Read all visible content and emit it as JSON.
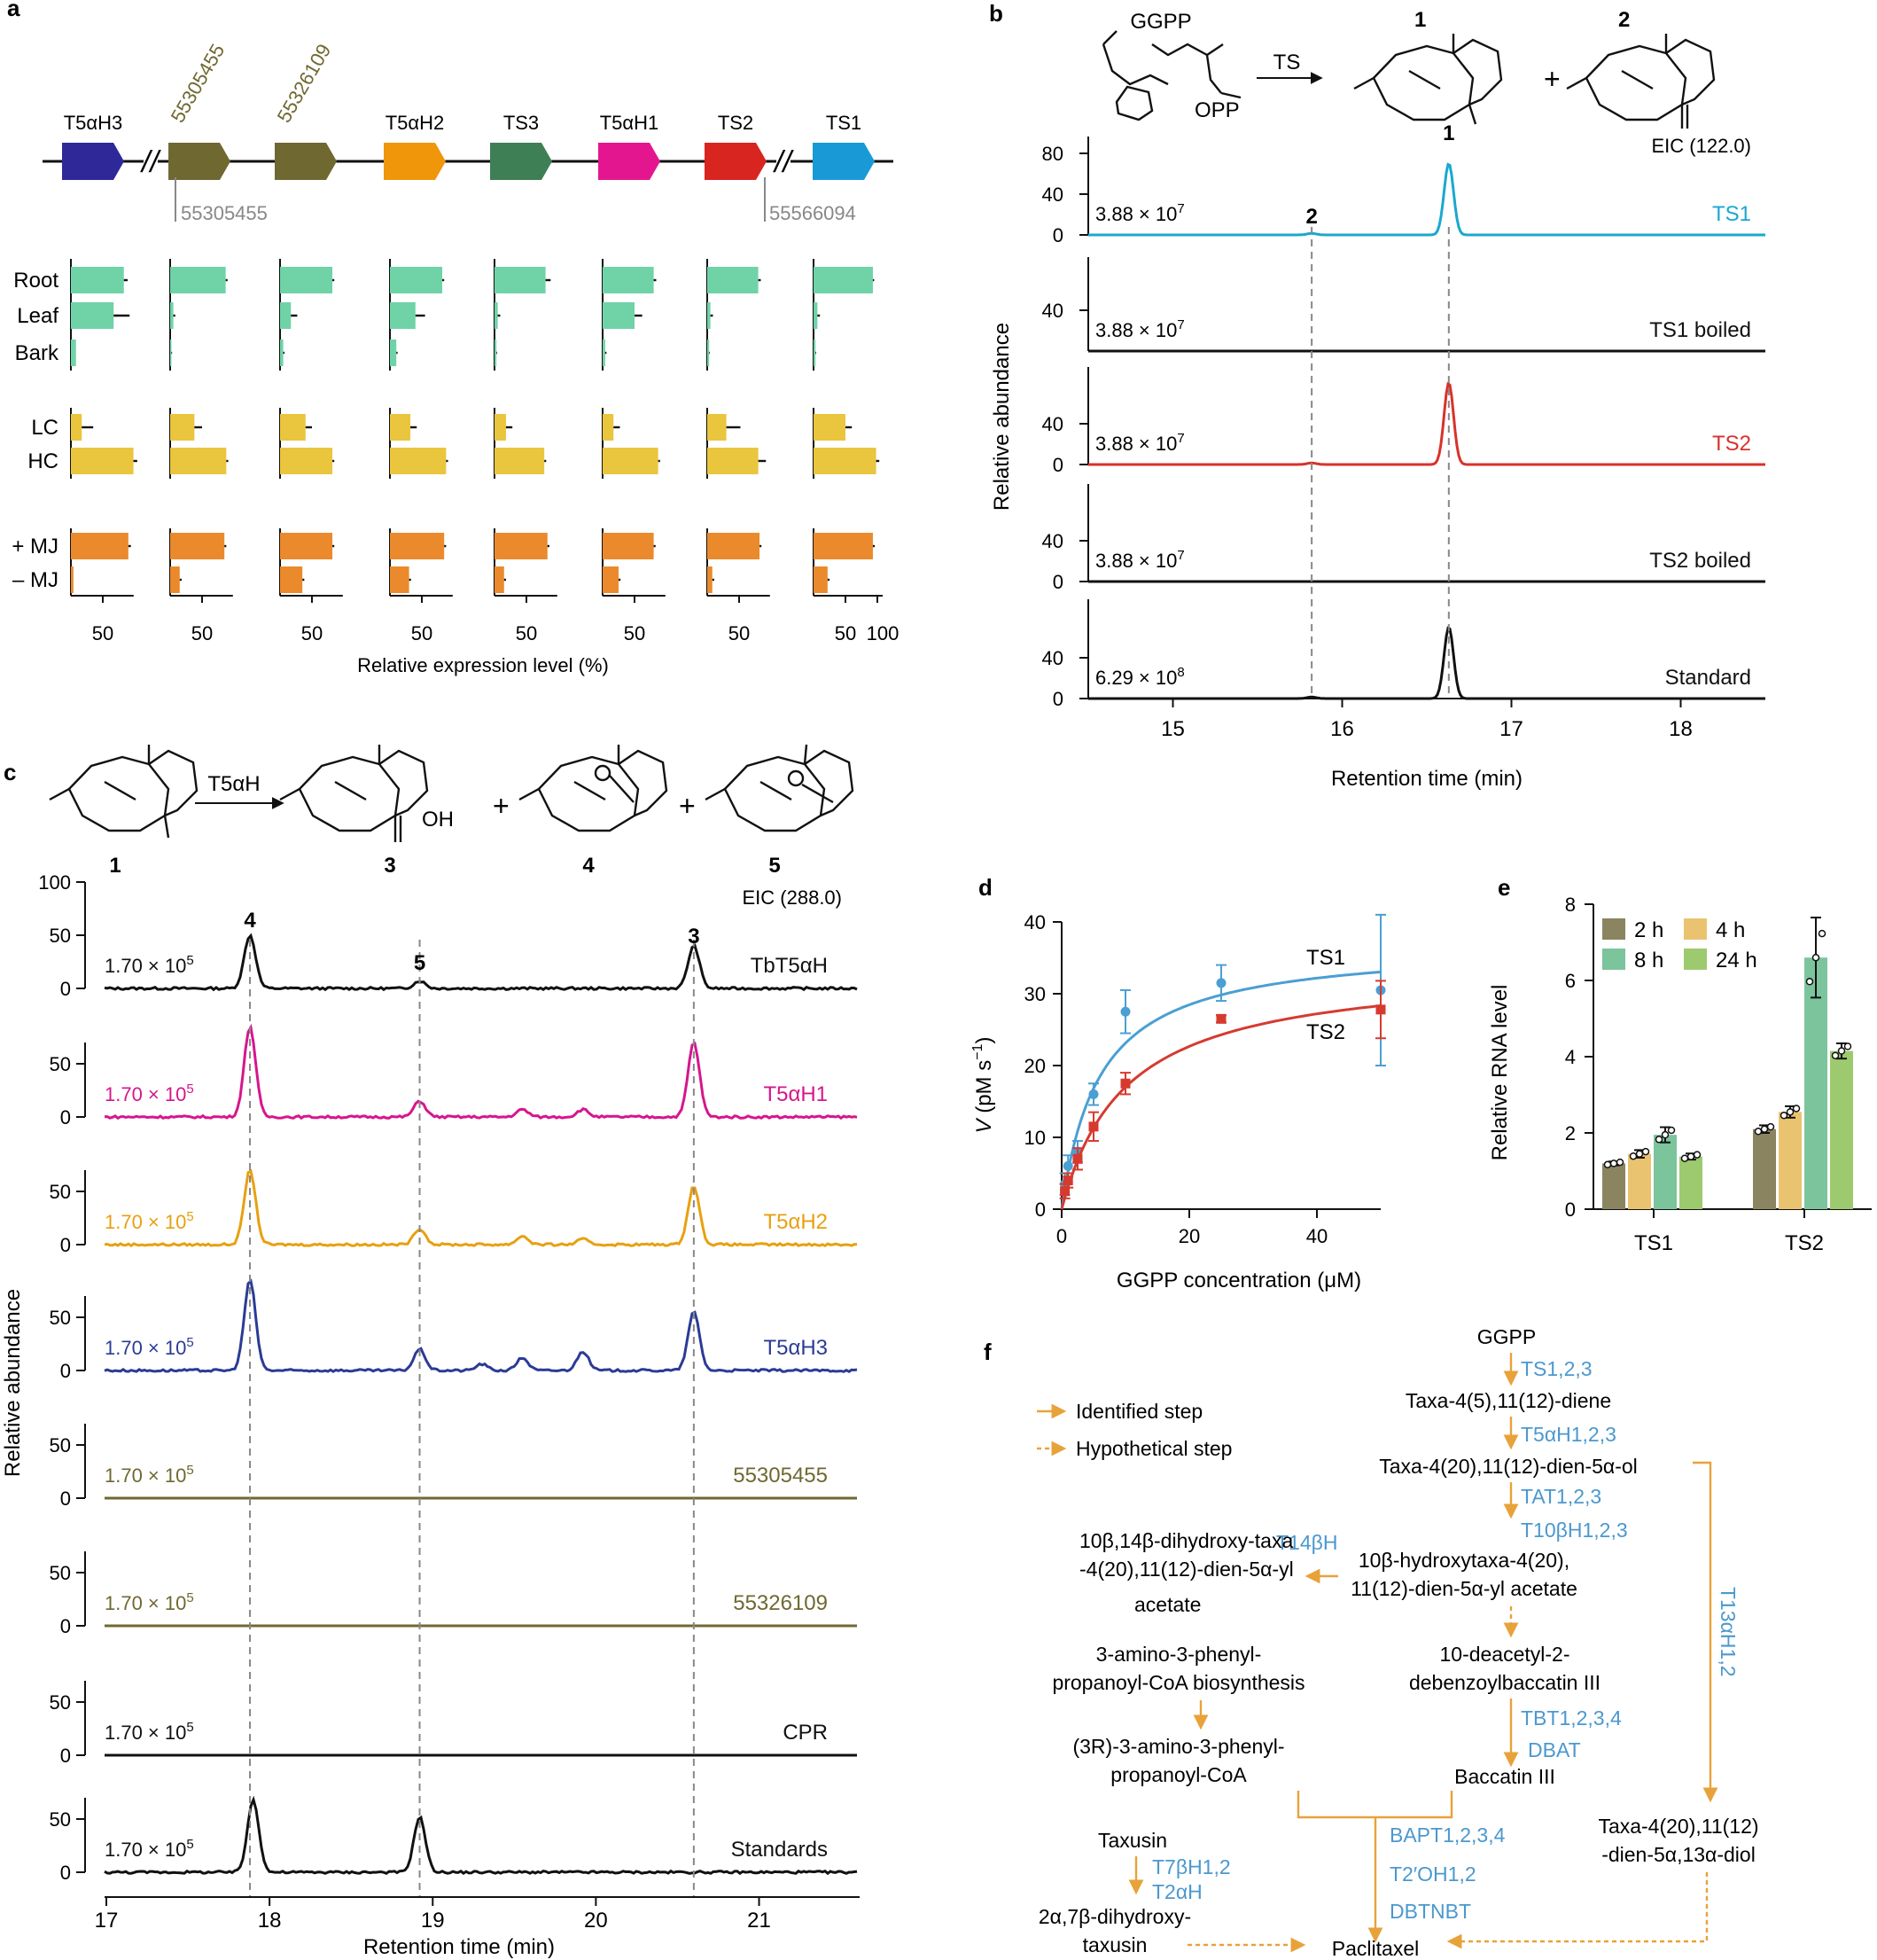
{
  "colors": {
    "root_tissue": "#6fd3a7",
    "cell": "#eac53e",
    "mj": "#ea8a2c",
    "TS1": "#1aa8cf",
    "TS2": "#d8322b",
    "T5aH1": "#d6168d",
    "T5aH2": "#e8a010",
    "T5aH3": "#2b3b95",
    "olive": "#6f6831",
    "arrow": "#e8a23a",
    "enzyme": "#4b98cf",
    "e_2h": "#8a8460",
    "e_4h": "#eac370",
    "e_8h": "#7cc49c",
    "e_24h": "#9dca6e"
  },
  "panel_labels": {
    "a": "a",
    "b": "b",
    "c": "c",
    "d": "d",
    "e": "e",
    "f": "f"
  },
  "panel_a": {
    "genes": [
      "T5αH3",
      "55305455",
      "55326109",
      "T5αH2",
      "TS3",
      "T5αH1",
      "TS2",
      "TS1"
    ],
    "gene_colors": [
      "#2e2899",
      "#6f6831",
      "#6f6831",
      "#f0960a",
      "#3f7f55",
      "#e4168f",
      "#d8251f",
      "#199ad6"
    ],
    "coord_left": "55305455",
    "coord_right": "55566094",
    "row_labels": [
      "Root",
      "Leaf",
      "Bark",
      "LC",
      "HC",
      "+ MJ",
      "– MJ"
    ],
    "values": [
      [
        83,
        67,
        8,
        17,
        98,
        90,
        4
      ],
      [
        87,
        5,
        2,
        38,
        88,
        85,
        15
      ],
      [
        82,
        17,
        5,
        40,
        82,
        82,
        35
      ],
      [
        82,
        40,
        10,
        32,
        88,
        85,
        30
      ],
      [
        80,
        5,
        3,
        18,
        78,
        83,
        15
      ],
      [
        80,
        50,
        4,
        17,
        87,
        80,
        25
      ],
      [
        80,
        5,
        3,
        30,
        80,
        82,
        8
      ],
      [
        93,
        6,
        3,
        50,
        98,
        93,
        22
      ]
    ],
    "errors": [
      [
        6,
        25,
        0,
        18,
        6,
        4,
        0
      ],
      [
        3,
        3,
        1,
        12,
        3,
        3,
        3
      ],
      [
        3,
        10,
        2,
        10,
        3,
        3,
        3
      ],
      [
        3,
        15,
        2,
        10,
        3,
        3,
        3
      ],
      [
        8,
        4,
        1,
        10,
        3,
        3,
        3
      ],
      [
        4,
        12,
        2,
        10,
        3,
        3,
        3
      ],
      [
        4,
        4,
        1,
        22,
        12,
        3,
        3
      ],
      [
        2,
        4,
        1,
        10,
        5,
        3,
        3
      ]
    ],
    "tick_label": "50",
    "tick_label_last": "100",
    "xlabel": "Relative expression level (%)"
  },
  "panel_b": {
    "reaction": {
      "substrate": "GGPP",
      "opp": "OPP",
      "enzyme": "TS",
      "product1": "1",
      "product2": "2",
      "plus": "+"
    },
    "eic": "EIC (122.0)",
    "ylabel": "Relative abundance",
    "xlabel": "Retention time (min)",
    "xticks": [
      "15",
      "16",
      "17",
      "18"
    ],
    "xlim": [
      14.5,
      18.5
    ],
    "peak_labels": [
      "2",
      "1"
    ],
    "dashed_x": [
      15.82,
      16.63
    ],
    "traces": [
      {
        "label": "TS1",
        "scale": "3.88 × 10",
        "exp": "7",
        "color": "#1aa8cf",
        "peaks": [
          [
            15.82,
            1.5
          ],
          [
            16.63,
            70
          ]
        ],
        "yticks": [
          "80",
          "40",
          "0"
        ]
      },
      {
        "label": "TS1 boiled",
        "scale": "3.88 × 10",
        "exp": "7",
        "color": "#111111",
        "peaks": [],
        "yticks": [
          "40"
        ]
      },
      {
        "label": "TS2",
        "scale": "3.88 × 10",
        "exp": "7",
        "color": "#d8322b",
        "peaks": [
          [
            15.82,
            1.5
          ],
          [
            16.63,
            80
          ]
        ],
        "yticks": [
          "40",
          "0"
        ]
      },
      {
        "label": "TS2 boiled",
        "scale": "3.88 × 10",
        "exp": "7",
        "color": "#111111",
        "peaks": [],
        "yticks": [
          "40",
          "0"
        ]
      },
      {
        "label": "Standard",
        "scale": "6.29 × 10",
        "exp": "8",
        "color": "#111111",
        "peaks": [
          [
            15.82,
            1.5
          ],
          [
            16.63,
            70
          ]
        ],
        "yticks": [
          "40",
          "0"
        ]
      }
    ]
  },
  "panel_c": {
    "reaction": {
      "enzyme": "T5αH",
      "oh": "OH",
      "labels": [
        "1",
        "3",
        "4",
        "5"
      ],
      "plus": "+"
    },
    "eic": "EIC (288.0)",
    "ylabel": "Relative abundance",
    "xlabel": "Retention time (min)",
    "xticks": [
      "17",
      "18",
      "19",
      "20",
      "21"
    ],
    "xlim": [
      17,
      21.6
    ],
    "peak_labels": [
      "4",
      "5",
      "3"
    ],
    "dashed_x": [
      17.88,
      18.92,
      20.6
    ],
    "traces": [
      {
        "label": "TbT5αH",
        "scale": "1.70 × 10",
        "exp": "5",
        "color": "#111111",
        "peaks": [
          [
            17.88,
            50
          ],
          [
            18.92,
            7
          ],
          [
            20.6,
            40
          ]
        ],
        "yticks": [
          "100",
          "50",
          "0"
        ]
      },
      {
        "label": "T5αH1",
        "scale": "1.70 × 10",
        "exp": "5",
        "color": "#d6168d",
        "peaks": [
          [
            17.88,
            85
          ],
          [
            18.92,
            15
          ],
          [
            19.55,
            7
          ],
          [
            19.92,
            7
          ],
          [
            20.6,
            70
          ]
        ],
        "yticks": [
          "50",
          "0"
        ]
      },
      {
        "label": "T5αH2",
        "scale": "1.70 × 10",
        "exp": "5",
        "color": "#e8a010",
        "peaks": [
          [
            17.88,
            70
          ],
          [
            18.92,
            15
          ],
          [
            19.55,
            8
          ],
          [
            19.92,
            5
          ],
          [
            20.6,
            55
          ]
        ],
        "yticks": [
          "50",
          "0"
        ]
      },
      {
        "label": "T5αH3",
        "scale": "1.70 × 10",
        "exp": "5",
        "color": "#2b3b95",
        "peaks": [
          [
            17.88,
            85
          ],
          [
            18.92,
            20
          ],
          [
            19.3,
            6
          ],
          [
            19.55,
            12
          ],
          [
            19.92,
            18
          ],
          [
            20.6,
            55
          ]
        ],
        "yticks": [
          "50",
          "0"
        ]
      },
      {
        "label": "55305455",
        "scale": "1.70 × 10",
        "exp": "5",
        "color": "#6f6831",
        "peaks": [],
        "yticks": [
          "50",
          "0"
        ]
      },
      {
        "label": "55326109",
        "scale": "1.70 × 10",
        "exp": "5",
        "color": "#6f6831",
        "peaks": [],
        "yticks": [
          "50",
          "0"
        ]
      },
      {
        "label": "CPR",
        "scale": "1.70 × 10",
        "exp": "5",
        "color": "#111111",
        "peaks": [],
        "yticks": [
          "50",
          "0"
        ]
      },
      {
        "label": "Standards",
        "scale": "1.70 × 10",
        "exp": "5",
        "color": "#111111",
        "peaks": [
          [
            17.9,
            68
          ],
          [
            18.92,
            52
          ]
        ],
        "yticks": [
          "50",
          "0"
        ]
      }
    ]
  },
  "chart_data": [
    {
      "type": "scatter",
      "panel": "d",
      "xlabel": "GGPP concentration (μM)",
      "ylabel_italic": "V",
      "ylabel_rest": " (pM s",
      "ylabel_sup": "−1",
      "ylabel_end": ")",
      "xlim": [
        0,
        50
      ],
      "ylim": [
        0,
        40
      ],
      "xticks": [
        0,
        20,
        40
      ],
      "yticks": [
        0,
        10,
        20,
        30,
        40
      ],
      "series": [
        {
          "name": "TS1",
          "color": "#4a9fd3",
          "vmax": 37,
          "km": 6,
          "x": [
            0.5,
            1,
            2.5,
            5,
            10,
            25,
            50
          ],
          "y": [
            3.5,
            6,
            8,
            16,
            27.5,
            31.5,
            30.5
          ],
          "err": [
            1.5,
            1.5,
            1.5,
            1.5,
            3,
            2.5,
            10.5
          ]
        },
        {
          "name": "TS2",
          "color": "#d63a2f",
          "vmax": 34,
          "km": 10,
          "x": [
            0.5,
            1,
            2.5,
            5,
            10,
            25,
            50
          ],
          "y": [
            2.5,
            4,
            7,
            11.5,
            17.5,
            26.5,
            27.8
          ],
          "err": [
            1,
            1,
            1.5,
            2,
            1.5,
            0.5,
            4
          ]
        }
      ]
    },
    {
      "type": "bar",
      "panel": "e",
      "ylabel": "Relative RNA level",
      "ylim": [
        0,
        8
      ],
      "yticks": [
        0,
        2,
        4,
        6,
        8
      ],
      "categories": [
        "TS1",
        "TS2"
      ],
      "series": [
        {
          "name": "2 h",
          "color": "#8a8460",
          "values": [
            1.2,
            2.1
          ],
          "err": [
            0.05,
            0.1
          ]
        },
        {
          "name": "4 h",
          "color": "#eac370",
          "values": [
            1.45,
            2.55
          ],
          "err": [
            0.1,
            0.15
          ]
        },
        {
          "name": "8 h",
          "color": "#7cc49c",
          "values": [
            1.95,
            6.6
          ],
          "err": [
            0.2,
            1.05
          ]
        },
        {
          "name": "24 h",
          "color": "#9dca6e",
          "values": [
            1.38,
            4.15
          ],
          "err": [
            0.08,
            0.2
          ]
        }
      ]
    }
  ],
  "panel_f": {
    "legend": [
      "Identified step",
      "Hypothetical step"
    ],
    "nodes": {
      "ggpp": "GGPP",
      "taxadiene": "Taxa-4(5),11(12)-diene",
      "dienol": "Taxa-4(20),11(12)-dien-5α-ol",
      "hydroxy1": "10β-hydroxytaxa-4(20),",
      "hydroxy2": "11(12)-dien-5α-yl acetate",
      "dihydroxy1": "10β,14β-dihydroxy-taxa",
      "dihydroxy2": "-4(20),11(12)-dien-5α-yl",
      "dihydroxy3": "acetate",
      "deacetyl1": "10-deacetyl-2-",
      "deacetyl2": "debenzoylbaccatin III",
      "amino1": "3-amino-3-phenyl-",
      "amino2": "propanoyl-CoA biosynthesis",
      "r_amino1": "(3R)-3-amino-3-phenyl-",
      "r_amino2": "propanoyl-CoA",
      "baccatin": "Baccatin III",
      "diol1": "Taxa-4(20),11(12)",
      "diol2": "-dien-5α,13α-diol",
      "taxusin": "Taxusin",
      "dihtaxusin1": "2α,7β-dihydroxy-",
      "dihtaxusin2": "taxusin",
      "paclitaxel": "Paclitaxel"
    },
    "enzymes": {
      "ts": "TS1,2,3",
      "t5ah": "T5αH1,2,3",
      "tat": "TAT1,2,3",
      "t10bh": "T10βH1,2,3",
      "t14bh": "T14βH",
      "t13ah": "T13αH1,2",
      "tbt": "TBT1,2,3,4",
      "dbat": "DBAT",
      "bapt": "BAPT1,2,3,4",
      "t2oh": "T2′OH1,2",
      "dbtnbt": "DBTNBT",
      "t7bh": "T7βH1,2",
      "t2ah": "T2αH"
    }
  }
}
